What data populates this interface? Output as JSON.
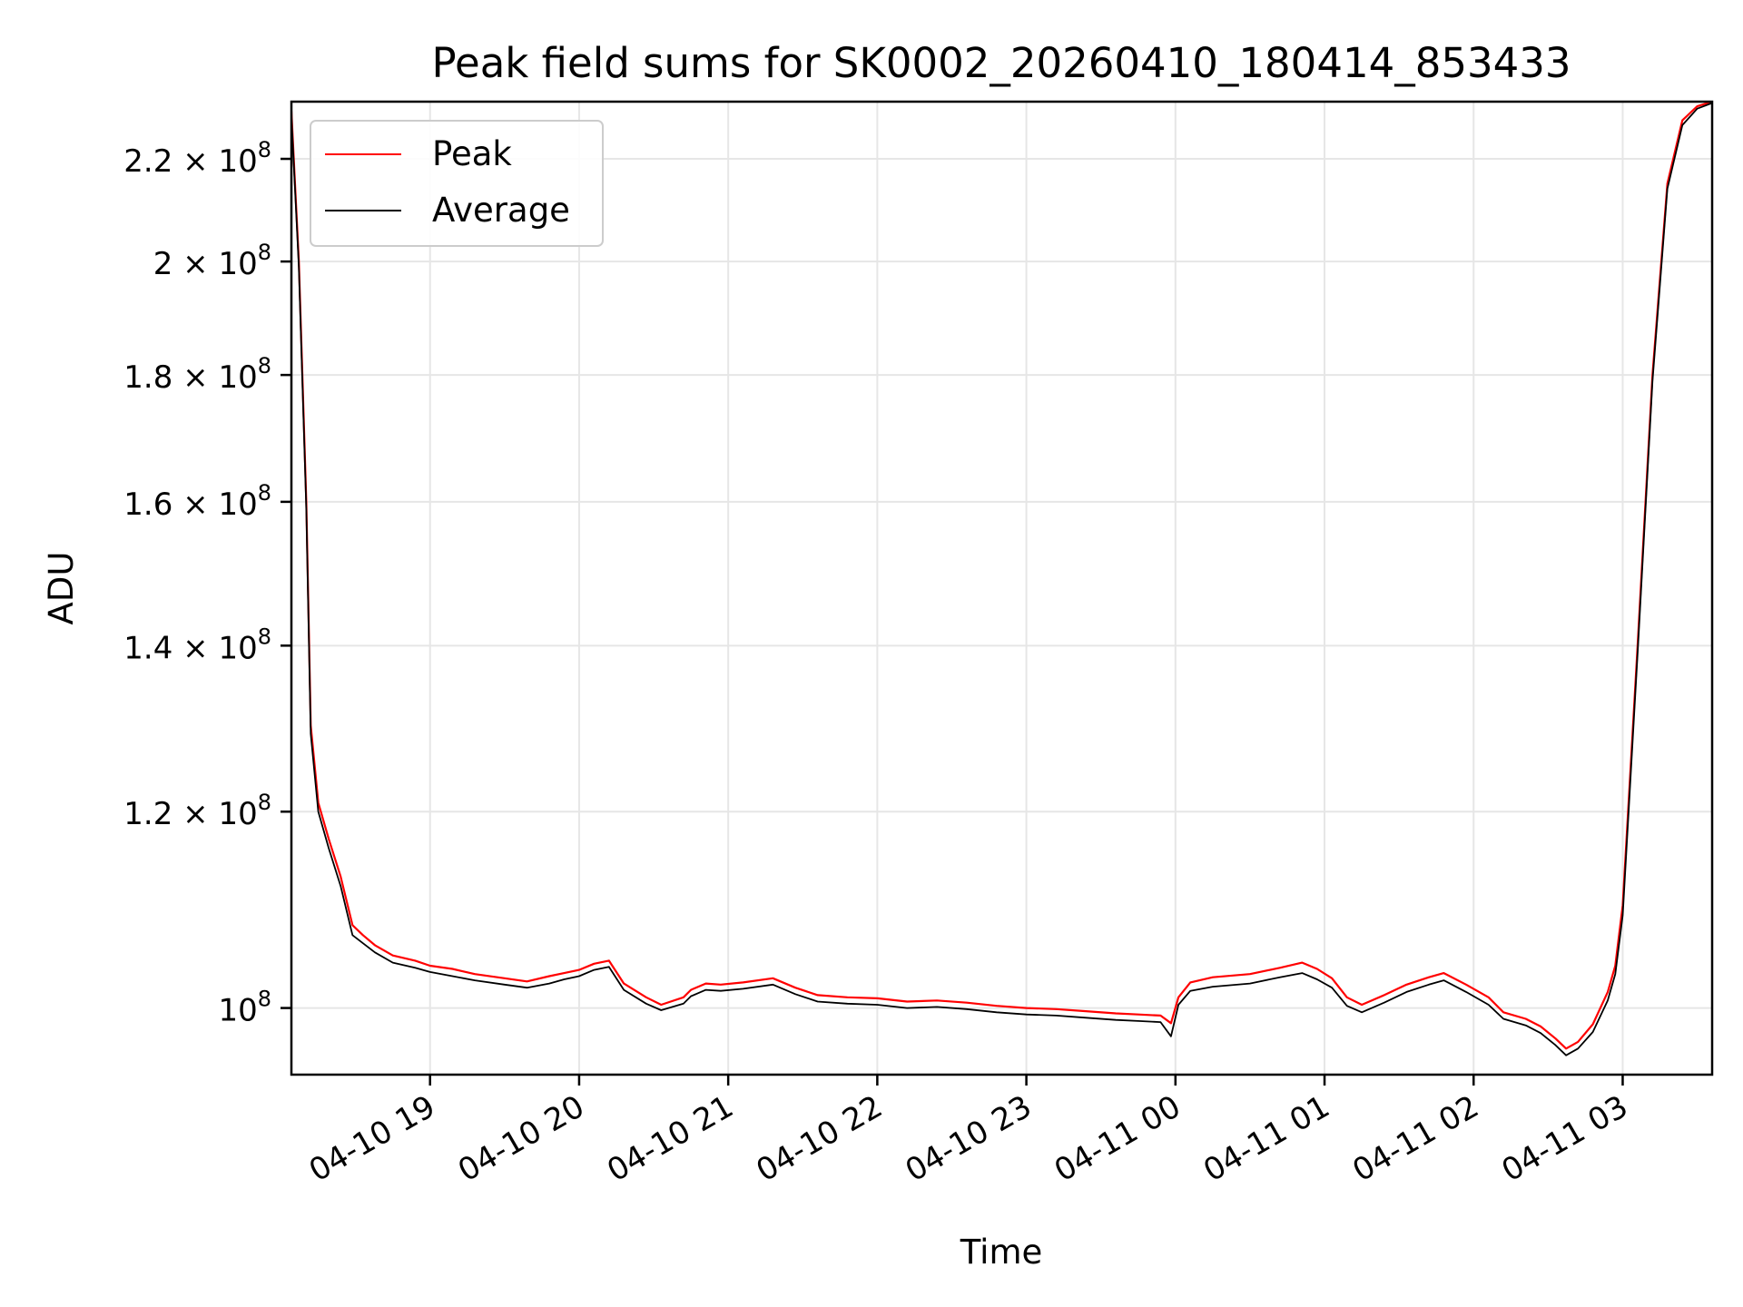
{
  "chart_data": {
    "type": "line",
    "title": "Peak field sums for SK0002_20260410_180414_853433",
    "xlabel": "Time",
    "ylabel": "ADU",
    "yscale": "log",
    "ylim": [
      94000000,
      232000000
    ],
    "xlim_hours": [
      18.07,
      27.6
    ],
    "grid": true,
    "legend_position": "upper-left",
    "x_ticks": [
      {
        "hour": 19,
        "label": "04-10 19"
      },
      {
        "hour": 20,
        "label": "04-10 20"
      },
      {
        "hour": 21,
        "label": "04-10 21"
      },
      {
        "hour": 22,
        "label": "04-10 22"
      },
      {
        "hour": 23,
        "label": "04-10 23"
      },
      {
        "hour": 24,
        "label": "04-11 00"
      },
      {
        "hour": 25,
        "label": "04-11 01"
      },
      {
        "hour": 26,
        "label": "04-11 02"
      },
      {
        "hour": 27,
        "label": "04-11 03"
      }
    ],
    "y_ticks": [
      {
        "value": 100000000,
        "mantissa": "",
        "exponent": "8"
      },
      {
        "value": 120000000,
        "mantissa": "1.2",
        "exponent": "8"
      },
      {
        "value": 140000000,
        "mantissa": "1.4",
        "exponent": "8"
      },
      {
        "value": 160000000,
        "mantissa": "1.6",
        "exponent": "8"
      },
      {
        "value": 180000000,
        "mantissa": "1.8",
        "exponent": "8"
      },
      {
        "value": 200000000,
        "mantissa": "2",
        "exponent": "8"
      },
      {
        "value": 220000000,
        "mantissa": "2.2",
        "exponent": "8"
      }
    ],
    "series": [
      {
        "name": "Peak",
        "color": "#ff0000",
        "x_hours": [
          18.07,
          18.12,
          18.17,
          18.2,
          18.25,
          18.32,
          18.4,
          18.48,
          18.55,
          18.63,
          18.75,
          18.9,
          19.0,
          19.15,
          19.3,
          19.5,
          19.65,
          19.8,
          19.9,
          20.0,
          20.1,
          20.2,
          20.3,
          20.45,
          20.55,
          20.7,
          20.75,
          20.85,
          20.95,
          21.1,
          21.3,
          21.45,
          21.6,
          21.8,
          22.0,
          22.2,
          22.4,
          22.6,
          22.8,
          23.0,
          23.2,
          23.4,
          23.6,
          23.75,
          23.9,
          23.97,
          24.02,
          24.1,
          24.25,
          24.5,
          24.7,
          24.85,
          24.95,
          25.05,
          25.15,
          25.25,
          25.4,
          25.55,
          25.7,
          25.8,
          25.95,
          26.1,
          26.2,
          26.35,
          26.45,
          26.55,
          26.62,
          26.7,
          26.8,
          26.9,
          26.95,
          27.0,
          27.1,
          27.2,
          27.3,
          27.4,
          27.5,
          27.6
        ],
        "values": [
          230000000,
          200000000,
          160000000,
          130000000,
          121000000,
          117000000,
          113000000,
          108000000,
          107000000,
          106000000,
          105000000,
          104500000,
          104000000,
          103700000,
          103200000,
          102800000,
          102500000,
          103000000,
          103300000,
          103600000,
          104200000,
          104500000,
          102300000,
          101000000,
          100300000,
          101000000,
          101700000,
          102300000,
          102200000,
          102400000,
          102800000,
          101900000,
          101200000,
          101000000,
          100900000,
          100600000,
          100700000,
          100500000,
          100200000,
          100000000,
          99900000,
          99700000,
          99500000,
          99400000,
          99300000,
          98600000,
          101000000,
          102400000,
          102900000,
          103200000,
          103800000,
          104300000,
          103700000,
          102800000,
          101000000,
          100300000,
          101200000,
          102200000,
          102900000,
          103300000,
          102200000,
          101000000,
          99600000,
          99000000,
          98300000,
          97200000,
          96300000,
          96900000,
          98500000,
          101500000,
          104000000,
          110000000,
          140000000,
          180000000,
          215000000,
          228000000,
          231000000,
          232000000
        ]
      },
      {
        "name": "Average",
        "color": "#000000",
        "x_hours": [
          18.07,
          18.12,
          18.17,
          18.2,
          18.25,
          18.32,
          18.4,
          18.48,
          18.55,
          18.63,
          18.75,
          18.9,
          19.0,
          19.15,
          19.3,
          19.5,
          19.65,
          19.8,
          19.9,
          20.0,
          20.1,
          20.2,
          20.3,
          20.45,
          20.55,
          20.7,
          20.75,
          20.85,
          20.95,
          21.1,
          21.3,
          21.45,
          21.6,
          21.8,
          22.0,
          22.2,
          22.4,
          22.6,
          22.8,
          23.0,
          23.2,
          23.4,
          23.6,
          23.75,
          23.9,
          23.97,
          24.02,
          24.1,
          24.25,
          24.5,
          24.7,
          24.85,
          24.95,
          25.05,
          25.15,
          25.25,
          25.4,
          25.55,
          25.7,
          25.8,
          25.95,
          26.1,
          26.2,
          26.35,
          26.45,
          26.55,
          26.62,
          26.7,
          26.8,
          26.9,
          26.95,
          27.0,
          27.1,
          27.2,
          27.3,
          27.4,
          27.5,
          27.6
        ],
        "values": [
          229000000,
          199000000,
          159000000,
          129000000,
          120000000,
          116000000,
          112000000,
          107000000,
          106200000,
          105300000,
          104300000,
          103800000,
          103400000,
          103000000,
          102600000,
          102200000,
          101900000,
          102300000,
          102700000,
          103000000,
          103600000,
          103900000,
          101700000,
          100400000,
          99800000,
          100400000,
          101100000,
          101700000,
          101600000,
          101800000,
          102200000,
          101300000,
          100600000,
          100400000,
          100300000,
          100000000,
          100100000,
          99900000,
          99600000,
          99400000,
          99300000,
          99100000,
          98900000,
          98800000,
          98700000,
          97400000,
          100300000,
          101600000,
          102000000,
          102300000,
          102900000,
          103300000,
          102700000,
          101900000,
          100200000,
          99600000,
          100500000,
          101500000,
          102200000,
          102600000,
          101500000,
          100300000,
          99000000,
          98400000,
          97700000,
          96600000,
          95700000,
          96300000,
          97800000,
          100700000,
          103200000,
          109000000,
          139000000,
          179000000,
          214000000,
          227000000,
          230500000,
          231700000
        ]
      }
    ]
  }
}
